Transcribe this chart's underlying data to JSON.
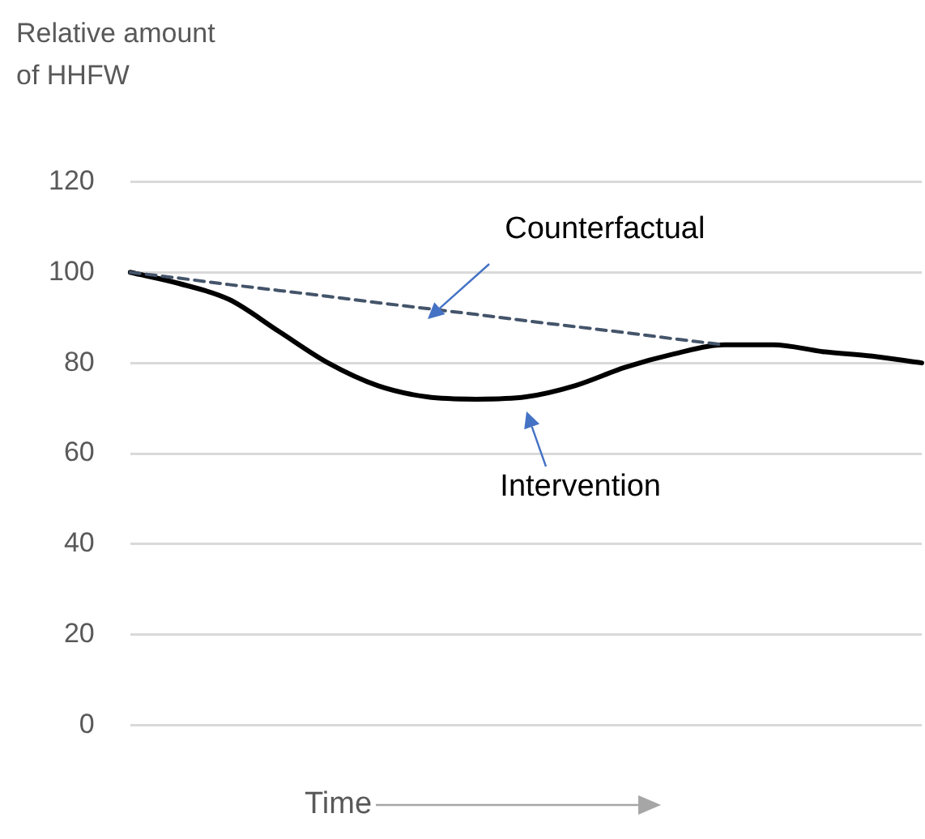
{
  "chart_data": {
    "type": "line",
    "ylabel": "Relative amount of HHFW",
    "xlabel": "Time",
    "categories": [
      null,
      null,
      null,
      null,
      null,
      null,
      null,
      null,
      null,
      null,
      null,
      null,
      null,
      null,
      null,
      null,
      null
    ],
    "series": [
      {
        "name": "Counterfactual",
        "color": "#44546a",
        "line_style": "dashed",
        "values": [
          100,
          98.7,
          97.3,
          96,
          94.7,
          93.3,
          92,
          90.7,
          89.3,
          88,
          86.7,
          85.3,
          84,
          null,
          null,
          null,
          null
        ]
      },
      {
        "name": "Intervention",
        "color": "#000000",
        "line_style": "solid",
        "values": [
          100,
          97.5,
          94,
          87,
          80,
          75,
          72.5,
          72,
          72.5,
          75,
          79,
          82,
          84,
          84,
          82.5,
          81.5,
          80
        ]
      }
    ],
    "ylim": [
      0,
      120
    ],
    "yticks": [
      0,
      20,
      40,
      60,
      80,
      100,
      120
    ],
    "grid": "y",
    "legend": false,
    "marker": "none"
  }
}
